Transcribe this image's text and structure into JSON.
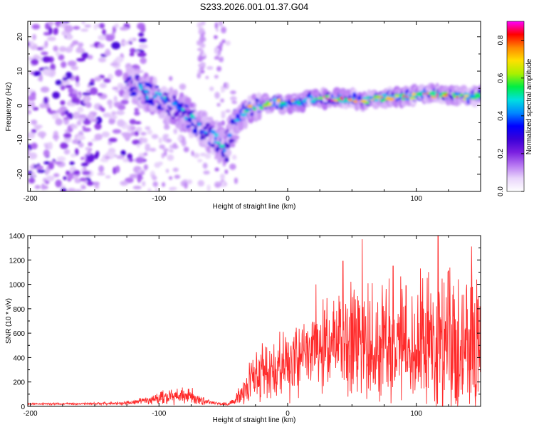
{
  "title": "S233.2026.001.01.37.G04",
  "chart_data": [
    {
      "type": "heatmap",
      "xlabel": "Height of straight line (km)",
      "ylabel": "Frequency (Hz)",
      "xlim": [
        -202,
        150
      ],
      "ylim": [
        -25,
        24.5
      ],
      "xticks": [
        -200,
        -100,
        0,
        100
      ],
      "yticks": [
        -20,
        -10,
        0,
        10,
        20
      ],
      "colorbar": {
        "label": "Normalized spectral amplitude",
        "range": [
          0,
          0.9
        ],
        "ticks": [
          "0.0",
          "0.2",
          "0.4",
          "0.6",
          "0.8"
        ],
        "tick_values": [
          0.0,
          0.2,
          0.4,
          0.6,
          0.8
        ],
        "colormap": [
          "#ffffff",
          "#e9d5fb",
          "#b777f2",
          "#7a1fe0",
          "#3a00d8",
          "#0000ff",
          "#0088ff",
          "#00e0e0",
          "#00ee44",
          "#aaf000",
          "#ffe000",
          "#ff8800",
          "#ff0000",
          "#ff00ff"
        ]
      },
      "ridge": {
        "description": "frequency of peak spectral amplitude vs height",
        "x": [
          -125,
          -115,
          -105,
          -95,
          -85,
          -75,
          -65,
          -55,
          -48,
          -42,
          -38,
          -30,
          -20,
          -10,
          0,
          10,
          20,
          30,
          40,
          50,
          60,
          70,
          80,
          90,
          100,
          110,
          120,
          130,
          140,
          150
        ],
        "y": [
          7,
          5,
          3,
          1,
          -1,
          -4,
          -7,
          -10,
          -13,
          -5,
          -4,
          -1,
          0,
          1,
          0.5,
          1,
          2,
          2,
          2,
          2,
          1.5,
          2,
          2.5,
          2.5,
          3,
          3.5,
          3,
          3,
          2.5,
          3
        ]
      }
    },
    {
      "type": "line",
      "xlabel": "Height of straight line (km)",
      "ylabel": "SNR (10 * v/v)",
      "xlim": [
        -202,
        150
      ],
      "ylim": [
        0,
        1400
      ],
      "xticks": [
        -200,
        -100,
        0,
        100
      ],
      "yticks": [
        0,
        200,
        400,
        600,
        800,
        1000,
        1200,
        1400
      ],
      "color": "#ff2a2a",
      "envelope": {
        "description": "approximate mean SNR and spike amplitude vs height",
        "x": [
          -202,
          -150,
          -130,
          -120,
          -110,
          -100,
          -90,
          -80,
          -70,
          -60,
          -55,
          -50,
          -45,
          -40,
          -35,
          -30,
          -25,
          -20,
          -10,
          0,
          10,
          20,
          30,
          40,
          50,
          60,
          70,
          80,
          90,
          100,
          110,
          120,
          130,
          140,
          150
        ],
        "mean": [
          20,
          22,
          25,
          35,
          50,
          70,
          85,
          90,
          70,
          30,
          25,
          20,
          25,
          60,
          120,
          180,
          220,
          250,
          300,
          340,
          390,
          440,
          480,
          510,
          520,
          520,
          510,
          500,
          510,
          500,
          500,
          490,
          480,
          470,
          450
        ],
        "spread": [
          10,
          12,
          15,
          20,
          40,
          60,
          80,
          90,
          70,
          20,
          15,
          15,
          20,
          60,
          120,
          160,
          200,
          250,
          280,
          300,
          320,
          350,
          380,
          420,
          480,
          500,
          500,
          500,
          520,
          560,
          620,
          640,
          650,
          620,
          560
        ]
      },
      "spikes": [
        {
          "x": 58,
          "y": 1370
        },
        {
          "x": 117,
          "y": 1400
        },
        {
          "x": 143,
          "y": 1310
        },
        {
          "x": 43,
          "y": 1190
        },
        {
          "x": 82,
          "y": 1150
        },
        {
          "x": 125,
          "y": 1110
        },
        {
          "x": 105,
          "y": 1050
        },
        {
          "x": 22,
          "y": 1000
        },
        {
          "x": 92,
          "y": 990
        },
        {
          "x": 147,
          "y": 1040
        }
      ]
    }
  ]
}
